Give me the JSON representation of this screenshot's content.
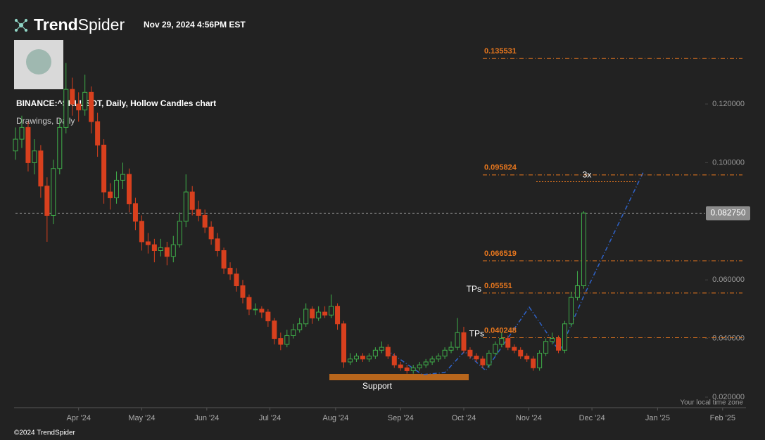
{
  "header": {
    "brand_bold": "Trend",
    "brand_light": "Spider",
    "timestamp": "Nov 29, 2024 4:56PM EST"
  },
  "chart_data": {
    "type": "candlestick",
    "title": "BINANCE:^SKLUSDT, Daily, Hollow Candles chart",
    "subtitle": "Drawings, Daily",
    "up_color": "#3fae4a",
    "down_color": "#d8401e",
    "ohlc": [
      [
        0.104,
        0.112,
        0.101,
        0.108
      ],
      [
        0.108,
        0.116,
        0.105,
        0.112
      ],
      [
        0.112,
        0.114,
        0.097,
        0.1
      ],
      [
        0.1,
        0.108,
        0.096,
        0.104
      ],
      [
        0.104,
        0.106,
        0.088,
        0.092
      ],
      [
        0.092,
        0.095,
        0.073,
        0.082
      ],
      [
        0.082,
        0.101,
        0.079,
        0.098
      ],
      [
        0.098,
        0.115,
        0.096,
        0.112
      ],
      [
        0.112,
        0.134,
        0.11,
        0.125
      ],
      [
        0.125,
        0.129,
        0.116,
        0.12
      ],
      [
        0.12,
        0.124,
        0.114,
        0.118
      ],
      [
        0.118,
        0.13,
        0.116,
        0.124
      ],
      [
        0.124,
        0.126,
        0.11,
        0.114
      ],
      [
        0.114,
        0.117,
        0.102,
        0.106
      ],
      [
        0.106,
        0.108,
        0.086,
        0.09
      ],
      [
        0.09,
        0.093,
        0.084,
        0.088
      ],
      [
        0.088,
        0.097,
        0.086,
        0.094
      ],
      [
        0.094,
        0.1,
        0.091,
        0.096
      ],
      [
        0.096,
        0.098,
        0.083,
        0.086
      ],
      [
        0.086,
        0.088,
        0.077,
        0.08
      ],
      [
        0.08,
        0.082,
        0.07,
        0.073
      ],
      [
        0.073,
        0.076,
        0.069,
        0.072
      ],
      [
        0.072,
        0.074,
        0.066,
        0.07
      ],
      [
        0.07,
        0.074,
        0.068,
        0.071
      ],
      [
        0.071,
        0.073,
        0.065,
        0.068
      ],
      [
        0.068,
        0.075,
        0.066,
        0.072
      ],
      [
        0.072,
        0.083,
        0.071,
        0.08
      ],
      [
        0.08,
        0.096,
        0.078,
        0.09
      ],
      [
        0.09,
        0.092,
        0.082,
        0.084
      ],
      [
        0.084,
        0.087,
        0.08,
        0.082
      ],
      [
        0.082,
        0.084,
        0.076,
        0.078
      ],
      [
        0.078,
        0.08,
        0.072,
        0.074
      ],
      [
        0.074,
        0.076,
        0.068,
        0.07
      ],
      [
        0.07,
        0.071,
        0.062,
        0.064
      ],
      [
        0.064,
        0.066,
        0.06,
        0.062
      ],
      [
        0.062,
        0.064,
        0.056,
        0.058
      ],
      [
        0.058,
        0.06,
        0.052,
        0.054
      ],
      [
        0.054,
        0.055,
        0.048,
        0.05
      ],
      [
        0.05,
        0.052,
        0.048,
        0.05
      ],
      [
        0.05,
        0.051,
        0.047,
        0.049
      ],
      [
        0.049,
        0.05,
        0.044,
        0.046
      ],
      [
        0.046,
        0.047,
        0.038,
        0.04
      ],
      [
        0.04,
        0.042,
        0.036,
        0.038
      ],
      [
        0.038,
        0.043,
        0.037,
        0.041
      ],
      [
        0.041,
        0.045,
        0.04,
        0.043
      ],
      [
        0.043,
        0.047,
        0.042,
        0.045
      ],
      [
        0.045,
        0.052,
        0.044,
        0.05
      ],
      [
        0.05,
        0.051,
        0.045,
        0.047
      ],
      [
        0.047,
        0.051,
        0.046,
        0.049
      ],
      [
        0.049,
        0.051,
        0.047,
        0.048
      ],
      [
        0.048,
        0.055,
        0.047,
        0.051
      ],
      [
        0.051,
        0.052,
        0.043,
        0.045
      ],
      [
        0.045,
        0.046,
        0.03,
        0.032
      ],
      [
        0.032,
        0.035,
        0.031,
        0.033
      ],
      [
        0.033,
        0.035,
        0.032,
        0.034
      ],
      [
        0.034,
        0.035,
        0.032,
        0.033
      ],
      [
        0.033,
        0.035,
        0.032,
        0.034
      ],
      [
        0.034,
        0.037,
        0.033,
        0.036
      ],
      [
        0.036,
        0.039,
        0.035,
        0.037
      ],
      [
        0.037,
        0.038,
        0.033,
        0.034
      ],
      [
        0.034,
        0.035,
        0.03,
        0.031
      ],
      [
        0.031,
        0.032,
        0.029,
        0.03
      ],
      [
        0.03,
        0.031,
        0.028,
        0.029
      ],
      [
        0.029,
        0.031,
        0.028,
        0.03
      ],
      [
        0.03,
        0.032,
        0.029,
        0.031
      ],
      [
        0.031,
        0.033,
        0.03,
        0.032
      ],
      [
        0.032,
        0.034,
        0.031,
        0.033
      ],
      [
        0.033,
        0.035,
        0.032,
        0.034
      ],
      [
        0.034,
        0.037,
        0.033,
        0.036
      ],
      [
        0.036,
        0.039,
        0.035,
        0.037
      ],
      [
        0.037,
        0.047,
        0.036,
        0.042
      ],
      [
        0.042,
        0.044,
        0.035,
        0.036
      ],
      [
        0.036,
        0.037,
        0.033,
        0.034
      ],
      [
        0.034,
        0.035,
        0.032,
        0.033
      ],
      [
        0.033,
        0.034,
        0.03,
        0.031
      ],
      [
        0.031,
        0.036,
        0.03,
        0.035
      ],
      [
        0.035,
        0.039,
        0.034,
        0.038
      ],
      [
        0.038,
        0.042,
        0.037,
        0.04
      ],
      [
        0.04,
        0.041,
        0.036,
        0.037
      ],
      [
        0.037,
        0.038,
        0.035,
        0.036
      ],
      [
        0.036,
        0.037,
        0.033,
        0.034
      ],
      [
        0.034,
        0.035,
        0.032,
        0.033
      ],
      [
        0.033,
        0.034,
        0.029,
        0.03
      ],
      [
        0.03,
        0.036,
        0.029,
        0.035
      ],
      [
        0.035,
        0.04,
        0.034,
        0.039
      ],
      [
        0.039,
        0.042,
        0.038,
        0.04
      ],
      [
        0.04,
        0.041,
        0.035,
        0.036
      ],
      [
        0.036,
        0.046,
        0.035,
        0.045
      ],
      [
        0.045,
        0.056,
        0.044,
        0.054
      ],
      [
        0.054,
        0.063,
        0.053,
        0.058
      ],
      [
        0.058,
        0.0835,
        0.057,
        0.0828
      ]
    ],
    "xlim": [
      0,
      115.7
    ],
    "xticks": [
      {
        "value": 10,
        "label": "Apr '24"
      },
      {
        "value": 20,
        "label": "May '24"
      },
      {
        "value": 30.3,
        "label": "Jun '24"
      },
      {
        "value": 40.3,
        "label": "Jul '24"
      },
      {
        "value": 50.7,
        "label": "Aug '24"
      },
      {
        "value": 61,
        "label": "Sep '24"
      },
      {
        "value": 71,
        "label": "Oct '24"
      },
      {
        "value": 81.3,
        "label": "Nov '24"
      },
      {
        "value": 91.3,
        "label": "Dec '24"
      },
      {
        "value": 101.7,
        "label": "Jan '25"
      },
      {
        "value": 112,
        "label": "Feb '25"
      }
    ],
    "ylim": [
      0.0164,
      0.1507
    ],
    "yticks": [
      {
        "value": 0.02,
        "label": "0.020000"
      },
      {
        "value": 0.04,
        "label": "0.040000"
      },
      {
        "value": 0.06,
        "label": "0.060000"
      },
      {
        "value": 0.1,
        "label": "0.100000"
      },
      {
        "value": 0.12,
        "label": "0.120000"
      }
    ],
    "level_color": "#e8771e",
    "levels": [
      0.135531,
      0.095824,
      0.066519,
      0.05551,
      0.040248
    ],
    "target": {
      "value": 0.0935,
      "label": "3x"
    },
    "tps": [
      {
        "value": 0.05551,
        "label": "TPs"
      },
      {
        "value": 0.040248,
        "label": "TPs"
      }
    ],
    "support_label": "Support",
    "last_price": {
      "value": 0.08275,
      "label": "0.082750"
    },
    "timezone_note": "Your local time zone"
  },
  "footer": {
    "copyright": "©2024 TrendSpider"
  }
}
